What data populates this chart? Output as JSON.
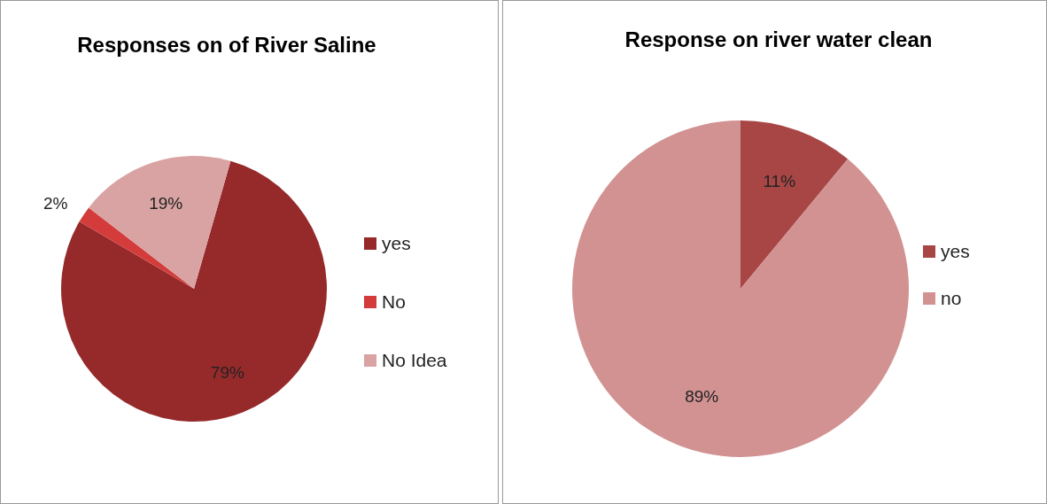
{
  "chart_data": [
    {
      "type": "pie",
      "title": "Responses on of River Saline",
      "categories": [
        "yes",
        "No",
        "No Idea"
      ],
      "values": [
        79,
        2,
        19
      ],
      "colors": [
        "#962a2a",
        "#d43c3c",
        "#d9a3a3"
      ],
      "value_labels": [
        "79%",
        "2%",
        "19%"
      ],
      "legend": "right"
    },
    {
      "type": "pie",
      "title": "Response on river water clean",
      "categories": [
        "yes",
        "no"
      ],
      "values": [
        11,
        89
      ],
      "colors": [
        "#a84646",
        "#d29292"
      ],
      "value_labels": [
        "11%",
        "89%"
      ],
      "legend": "right"
    }
  ]
}
